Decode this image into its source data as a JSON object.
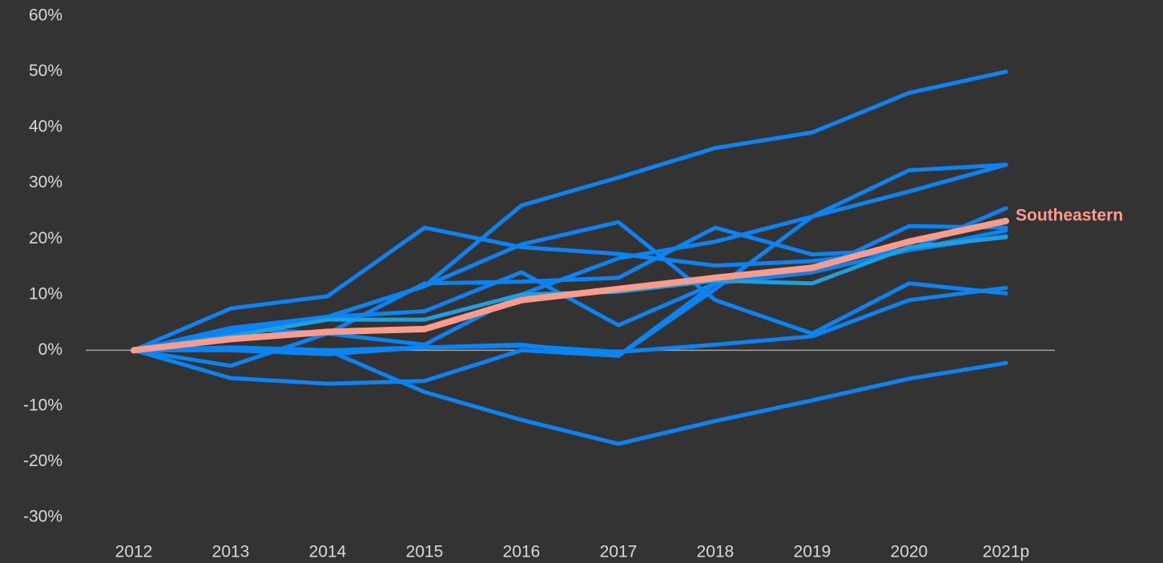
{
  "chart_data": {
    "type": "line",
    "categories": [
      "2012",
      "2013",
      "2014",
      "2015",
      "2016",
      "2017",
      "2018",
      "2019",
      "2020",
      "2021p"
    ],
    "series": [
      {
        "color": "#0a84f5",
        "values": [
          0,
          4,
          6,
          11.5,
          26,
          31,
          36.3,
          39.1,
          46.2,
          50
        ]
      },
      {
        "color": "#0a84f5",
        "values": [
          0,
          7.5,
          9.7,
          22,
          18.5,
          17.3,
          15.2,
          16,
          18,
          21.5
        ]
      },
      {
        "color": "#0a84f5",
        "values": [
          0,
          3,
          6,
          11.5,
          19,
          23,
          9,
          3,
          12,
          10.2
        ]
      },
      {
        "color": "#0a84f5",
        "values": [
          0,
          -2.8,
          3,
          12,
          12.3,
          13,
          22,
          17.2,
          18,
          20.5
        ]
      },
      {
        "color": "#0a84f5",
        "values": [
          0,
          0.5,
          0,
          0.5,
          1,
          -1,
          11,
          24,
          32.3,
          33.3
        ]
      },
      {
        "color": "#0a84f5",
        "values": [
          0,
          3.5,
          6,
          7,
          14,
          4.5,
          12,
          14,
          22.3,
          22
        ]
      },
      {
        "color": "#0a84f5",
        "values": [
          0,
          4,
          3,
          1,
          10,
          16.5,
          19.5,
          24,
          28.5,
          33.3
        ]
      },
      {
        "color": "#0a84f5",
        "values": [
          0,
          0,
          -0.7,
          0.5,
          0.8,
          -0.3,
          1,
          2.5,
          9,
          11.2
        ]
      },
      {
        "color": "#0a84f5",
        "values": [
          0,
          -5,
          -6,
          -5.5,
          0,
          -1,
          12,
          14,
          18,
          25.5
        ]
      },
      {
        "color": "#0a84f5",
        "values": [
          0,
          0.5,
          0,
          -7.5,
          -12.5,
          -16.8,
          -12.7,
          -9,
          -5.1,
          -2.3
        ]
      },
      {
        "color": "#1ba1e2",
        "values": [
          0,
          2.5,
          5.5,
          5.5,
          10,
          10.5,
          12.5,
          12,
          18.5,
          20.3
        ]
      },
      {
        "name": "Southeastern",
        "color": "#ff9b8a",
        "values": [
          0,
          2,
          3.3,
          3.8,
          9,
          11,
          13,
          14.8,
          19.5,
          23.2
        ]
      }
    ],
    "ylim": [
      -30,
      60
    ],
    "yticks": [
      {
        "value": -30,
        "label": "-30%"
      },
      {
        "value": -20,
        "label": "-20%"
      },
      {
        "value": -10,
        "label": "-10%"
      },
      {
        "value": 0,
        "label": "0%"
      },
      {
        "value": 10,
        "label": "10%"
      },
      {
        "value": 20,
        "label": "20%"
      },
      {
        "value": 30,
        "label": "30%"
      },
      {
        "value": 40,
        "label": "40%"
      },
      {
        "value": 50,
        "label": "50%"
      },
      {
        "value": 60,
        "label": "60%"
      }
    ]
  }
}
